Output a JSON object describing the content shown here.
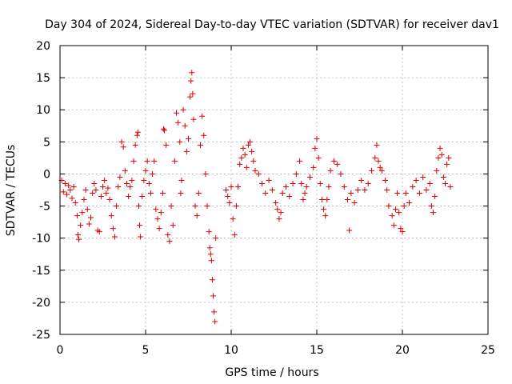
{
  "chart_data": {
    "type": "scatter",
    "title": "Day 304 of 2024, Sidereal Day-to-day VTEC variation (SDTVAR) for receiver dav1",
    "xlabel": "GPS time / hours",
    "ylabel": "SDTVAR / TECUs",
    "xlim": [
      0,
      25
    ],
    "ylim": [
      -25,
      20
    ],
    "xticks": [
      0,
      5,
      10,
      15,
      20,
      25
    ],
    "yticks": [
      -25,
      -20,
      -15,
      -10,
      -5,
      0,
      5,
      10,
      15,
      20
    ],
    "grid": true,
    "marker": "+",
    "color": "#e00000",
    "series": [
      {
        "name": "SDTVAR",
        "points": [
          [
            0.1,
            -1.0
          ],
          [
            0.2,
            -2.8
          ],
          [
            0.3,
            -1.5
          ],
          [
            0.4,
            -3.2
          ],
          [
            0.5,
            -1.8
          ],
          [
            0.6,
            -2.5
          ],
          [
            0.7,
            -3.8
          ],
          [
            0.8,
            -2.0
          ],
          [
            0.9,
            -4.5
          ],
          [
            1.0,
            -6.5
          ],
          [
            1.05,
            -9.5
          ],
          [
            1.1,
            -10.2
          ],
          [
            1.2,
            -8.0
          ],
          [
            1.3,
            -6.0
          ],
          [
            1.4,
            -4.0
          ],
          [
            1.5,
            -2.5
          ],
          [
            1.6,
            -5.5
          ],
          [
            1.7,
            -7.8
          ],
          [
            1.8,
            -6.8
          ],
          [
            1.9,
            -3.0
          ],
          [
            2.0,
            -1.5
          ],
          [
            2.1,
            -2.5
          ],
          [
            2.2,
            -8.8
          ],
          [
            2.3,
            -9.0
          ],
          [
            2.4,
            -3.5
          ],
          [
            2.5,
            -2.0
          ],
          [
            2.6,
            -1.0
          ],
          [
            2.7,
            -3.0
          ],
          [
            2.8,
            -2.2
          ],
          [
            2.9,
            -4.0
          ],
          [
            3.0,
            -6.5
          ],
          [
            3.1,
            -8.5
          ],
          [
            3.2,
            -9.8
          ],
          [
            3.3,
            -5.0
          ],
          [
            3.4,
            -2.0
          ],
          [
            3.5,
            -0.5
          ],
          [
            3.6,
            5.0
          ],
          [
            3.7,
            4.2
          ],
          [
            3.8,
            0.5
          ],
          [
            3.9,
            -1.5
          ],
          [
            4.0,
            -3.5
          ],
          [
            4.1,
            -2.0
          ],
          [
            4.2,
            -1.0
          ],
          [
            4.3,
            2.0
          ],
          [
            4.4,
            4.5
          ],
          [
            4.5,
            6.0
          ],
          [
            4.55,
            6.5
          ],
          [
            4.6,
            -5.0
          ],
          [
            4.65,
            -8.0
          ],
          [
            4.7,
            -9.8
          ],
          [
            4.8,
            -3.5
          ],
          [
            4.9,
            -1.0
          ],
          [
            5.0,
            0.5
          ],
          [
            5.1,
            2.0
          ],
          [
            5.2,
            -1.5
          ],
          [
            5.3,
            -3.0
          ],
          [
            5.4,
            0.0
          ],
          [
            5.5,
            2.0
          ],
          [
            5.6,
            -5.5
          ],
          [
            5.7,
            -7.0
          ],
          [
            5.8,
            -8.5
          ],
          [
            5.9,
            -6.0
          ],
          [
            6.0,
            -3.0
          ],
          [
            6.05,
            7.0
          ],
          [
            6.1,
            6.8
          ],
          [
            6.2,
            4.5
          ],
          [
            6.3,
            -9.5
          ],
          [
            6.4,
            -10.5
          ],
          [
            6.5,
            -5.0
          ],
          [
            6.6,
            -8.0
          ],
          [
            6.7,
            2.0
          ],
          [
            6.8,
            9.5
          ],
          [
            6.9,
            8.0
          ],
          [
            7.0,
            5.0
          ],
          [
            7.05,
            -3.0
          ],
          [
            7.1,
            -1.0
          ],
          [
            7.2,
            10.0
          ],
          [
            7.3,
            7.5
          ],
          [
            7.4,
            3.5
          ],
          [
            7.5,
            5.5
          ],
          [
            7.6,
            12.0
          ],
          [
            7.65,
            14.5
          ],
          [
            7.7,
            15.8
          ],
          [
            7.75,
            12.5
          ],
          [
            7.8,
            8.5
          ],
          [
            7.9,
            -5.0
          ],
          [
            8.0,
            -6.5
          ],
          [
            8.1,
            -3.0
          ],
          [
            8.2,
            4.5
          ],
          [
            8.3,
            9.0
          ],
          [
            8.4,
            6.0
          ],
          [
            8.5,
            0.0
          ],
          [
            8.6,
            -5.0
          ],
          [
            8.7,
            -9.0
          ],
          [
            8.75,
            -11.5
          ],
          [
            8.8,
            -12.5
          ],
          [
            8.85,
            -13.5
          ],
          [
            8.9,
            -16.5
          ],
          [
            8.95,
            -19.0
          ],
          [
            9.0,
            -21.5
          ],
          [
            9.05,
            -23.0
          ],
          [
            9.1,
            -10.0
          ],
          [
            9.7,
            -2.5
          ],
          [
            9.8,
            -3.5
          ],
          [
            9.9,
            -4.5
          ],
          [
            10.0,
            -2.0
          ],
          [
            10.1,
            -7.0
          ],
          [
            10.2,
            -9.5
          ],
          [
            10.3,
            -5.0
          ],
          [
            10.4,
            -2.0
          ],
          [
            10.5,
            1.5
          ],
          [
            10.6,
            2.5
          ],
          [
            10.7,
            4.0
          ],
          [
            10.8,
            3.0
          ],
          [
            10.9,
            1.0
          ],
          [
            11.0,
            4.5
          ],
          [
            11.1,
            5.0
          ],
          [
            11.2,
            3.5
          ],
          [
            11.3,
            2.0
          ],
          [
            11.4,
            0.5
          ],
          [
            11.6,
            0.0
          ],
          [
            11.8,
            -1.5
          ],
          [
            12.0,
            -3.0
          ],
          [
            12.2,
            -1.0
          ],
          [
            12.4,
            -2.5
          ],
          [
            12.6,
            -4.5
          ],
          [
            12.7,
            -5.5
          ],
          [
            12.8,
            -7.0
          ],
          [
            12.9,
            -6.0
          ],
          [
            13.0,
            -3.0
          ],
          [
            13.2,
            -2.0
          ],
          [
            13.4,
            -3.5
          ],
          [
            13.6,
            -1.5
          ],
          [
            13.8,
            0.0
          ],
          [
            14.0,
            2.0
          ],
          [
            14.1,
            -1.5
          ],
          [
            14.2,
            -4.0
          ],
          [
            14.3,
            -3.0
          ],
          [
            14.4,
            -2.0
          ],
          [
            14.6,
            -0.5
          ],
          [
            14.8,
            1.0
          ],
          [
            14.9,
            4.0
          ],
          [
            15.0,
            5.5
          ],
          [
            15.1,
            2.5
          ],
          [
            15.2,
            -1.5
          ],
          [
            15.3,
            -4.0
          ],
          [
            15.4,
            -5.5
          ],
          [
            15.5,
            -6.5
          ],
          [
            15.6,
            -4.0
          ],
          [
            15.7,
            -2.0
          ],
          [
            15.8,
            0.5
          ],
          [
            16.0,
            2.0
          ],
          [
            16.2,
            1.5
          ],
          [
            16.4,
            0.0
          ],
          [
            16.6,
            -2.0
          ],
          [
            16.8,
            -4.0
          ],
          [
            16.9,
            -8.8
          ],
          [
            17.0,
            -3.0
          ],
          [
            17.2,
            -4.5
          ],
          [
            17.4,
            -2.5
          ],
          [
            17.6,
            -1.0
          ],
          [
            17.8,
            -2.5
          ],
          [
            18.0,
            -1.5
          ],
          [
            18.2,
            0.5
          ],
          [
            18.4,
            2.5
          ],
          [
            18.5,
            4.5
          ],
          [
            18.6,
            2.0
          ],
          [
            18.7,
            1.0
          ],
          [
            18.8,
            0.5
          ],
          [
            19.0,
            -1.0
          ],
          [
            19.1,
            -2.5
          ],
          [
            19.2,
            -5.0
          ],
          [
            19.4,
            -6.5
          ],
          [
            19.5,
            -8.0
          ],
          [
            19.6,
            -5.5
          ],
          [
            19.7,
            -3.0
          ],
          [
            19.8,
            -6.0
          ],
          [
            19.9,
            -8.5
          ],
          [
            20.0,
            -9.0
          ],
          [
            20.1,
            -5.0
          ],
          [
            20.2,
            -3.0
          ],
          [
            20.4,
            -4.5
          ],
          [
            20.6,
            -2.0
          ],
          [
            20.8,
            -1.0
          ],
          [
            21.0,
            -3.0
          ],
          [
            21.2,
            -0.5
          ],
          [
            21.4,
            -2.5
          ],
          [
            21.6,
            -1.5
          ],
          [
            21.7,
            -5.0
          ],
          [
            21.8,
            -6.0
          ],
          [
            21.9,
            -3.5
          ],
          [
            22.0,
            0.5
          ],
          [
            22.1,
            2.5
          ],
          [
            22.2,
            4.0
          ],
          [
            22.3,
            3.0
          ],
          [
            22.4,
            -0.5
          ],
          [
            22.5,
            -1.5
          ],
          [
            22.6,
            1.5
          ],
          [
            22.7,
            2.5
          ],
          [
            22.8,
            -2.0
          ]
        ]
      }
    ]
  }
}
